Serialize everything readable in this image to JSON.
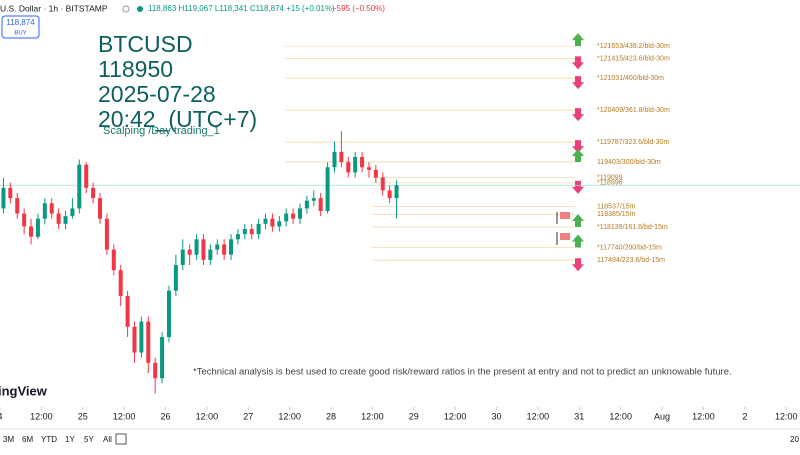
{
  "header": {
    "symbol": "U.S. Dollar · 1h · BITSTAMP",
    "ohlc": "118,863 H119,067 L118,341 C118,874 +15 (+0.01%)",
    "change": "−595 (−0.50%)",
    "price_box": "118,874",
    "price_box_action": "BUY"
  },
  "chart_data": {
    "type": "candlestick",
    "overlay_text": [
      "BTCUSD",
      "118950",
      "2025-07-28",
      "20:42_(UTC+7)"
    ],
    "subtitle": "Scalping /Day trading_1",
    "annotation": "*Technical analysis is best used to create good risk/reward ratios in the present at entry and not to predict an unknowable future.",
    "watermark": "ingView",
    "up_color": "#089981",
    "down_color": "#f23645",
    "x": [
      1,
      3,
      5,
      7,
      9,
      11,
      13,
      15,
      17,
      19,
      21,
      23,
      25,
      27,
      29,
      31,
      33,
      35,
      37,
      39,
      41,
      43,
      45,
      47,
      49,
      51,
      53,
      55,
      57,
      59,
      61,
      63,
      65,
      67,
      69,
      71,
      73,
      75,
      77,
      79,
      81,
      83,
      85,
      87,
      89,
      91,
      93,
      95,
      97,
      99,
      101,
      103,
      105,
      107,
      109,
      111,
      113,
      115
    ],
    "open": [
      118500,
      118900,
      118700,
      118400,
      118150,
      117950,
      118300,
      118600,
      118400,
      118200,
      118350,
      118500,
      119350,
      118900,
      118700,
      118300,
      117700,
      117300,
      116800,
      116200,
      115700,
      116300,
      115500,
      115200,
      116000,
      116900,
      117400,
      117700,
      117600,
      117900,
      117500,
      117700,
      117800,
      117600,
      117900,
      118000,
      118100,
      118000,
      118200,
      118300,
      118150,
      118250,
      118400,
      118300,
      118500,
      118650,
      118700,
      118450,
      119300,
      119600,
      119400,
      119200,
      119500,
      119300,
      119250,
      119100,
      118850,
      118700
    ],
    "high": [
      119100,
      119000,
      118800,
      118500,
      118300,
      118400,
      118700,
      118700,
      118500,
      118450,
      118700,
      119450,
      119400,
      119000,
      118800,
      118400,
      117800,
      117400,
      116900,
      116300,
      116400,
      116400,
      115600,
      116100,
      117000,
      117600,
      117900,
      117800,
      118000,
      118000,
      117800,
      117900,
      117900,
      118000,
      118100,
      118200,
      118200,
      118300,
      118400,
      118400,
      118350,
      118500,
      118500,
      118600,
      118750,
      118850,
      118800,
      119400,
      119800,
      120000,
      119500,
      119600,
      119600,
      119400,
      119350,
      119200,
      118950,
      119050
    ],
    "low": [
      118400,
      118600,
      118300,
      118000,
      117800,
      117900,
      118200,
      118300,
      118100,
      118100,
      118300,
      118400,
      118800,
      118600,
      118200,
      117600,
      117200,
      116600,
      116000,
      115500,
      115600,
      115300,
      114900,
      115100,
      115900,
      116800,
      117300,
      117400,
      117500,
      117400,
      117400,
      117600,
      117500,
      117500,
      117800,
      117900,
      117900,
      117900,
      118100,
      118050,
      118050,
      118150,
      118200,
      118200,
      118400,
      118550,
      118350,
      118400,
      119200,
      119300,
      119100,
      119100,
      119200,
      119100,
      119000,
      118750,
      118600,
      118300
    ],
    "close": [
      118900,
      118700,
      118400,
      118150,
      117950,
      118300,
      118600,
      118400,
      118200,
      118350,
      118500,
      119350,
      118900,
      118700,
      118300,
      117700,
      117300,
      116800,
      116200,
      115700,
      116300,
      115500,
      115200,
      116000,
      116900,
      117400,
      117700,
      117600,
      117900,
      117500,
      117700,
      117800,
      117600,
      117900,
      118000,
      118100,
      118000,
      118200,
      118300,
      118150,
      118250,
      118400,
      118300,
      118500,
      118650,
      118700,
      118450,
      119300,
      119600,
      119400,
      119200,
      119500,
      119300,
      119250,
      119100,
      118850,
      118700,
      118950
    ],
    "levels": [
      {
        "value": 121653,
        "label": "*121653/438.2/bld-30m",
        "arrow": "up"
      },
      {
        "value": 121415,
        "label": "*121415/423.6/bld-30m",
        "arrow": "down"
      },
      {
        "value": 121031,
        "label": "*121031/400/bld-30m",
        "arrow": "down"
      },
      {
        "value": 120409,
        "label": "*120409/361.8/bld-30m",
        "arrow": "down"
      },
      {
        "value": 119787,
        "label": "*119787/323.6/bld-30m",
        "arrow": "down"
      },
      {
        "value": 119403,
        "label": "119403/300/bld-30m",
        "arrow": "up"
      },
      {
        "value": 119099,
        "label": "*119099",
        "arrow": null
      },
      {
        "value": 118996,
        "label": "*118996",
        "arrow": "down"
      },
      {
        "value": 118537,
        "label": "118537/15m",
        "arrow": null
      },
      {
        "value": 118385,
        "label": "118385/15m",
        "arrow": null
      },
      {
        "value": 118139,
        "label": "*118139/161.8/bd-15m",
        "arrow": "up"
      },
      {
        "value": 117740,
        "label": "*117740/200/bd-15m",
        "arrow": "up"
      },
      {
        "value": 117494,
        "label": "117494/223.6/bd-15m",
        "arrow": "down"
      }
    ],
    "xlim": [
      0,
      232
    ],
    "ylim": [
      114680,
      122550
    ],
    "xticks": [
      {
        "value": 0,
        "label": "4"
      },
      {
        "value": 12,
        "label": "12:00"
      },
      {
        "value": 24,
        "label": "25"
      },
      {
        "value": 36,
        "label": "12:00"
      },
      {
        "value": 48,
        "label": "26"
      },
      {
        "value": 60,
        "label": "12:00"
      },
      {
        "value": 72,
        "label": "27"
      },
      {
        "value": 84,
        "label": "12:00"
      },
      {
        "value": 96,
        "label": "28"
      },
      {
        "value": 108,
        "label": "12:00"
      },
      {
        "value": 120,
        "label": "29"
      },
      {
        "value": 132,
        "label": "12:00"
      },
      {
        "value": 144,
        "label": "30"
      },
      {
        "value": 156,
        "label": "12:00"
      },
      {
        "value": 168,
        "label": "31"
      },
      {
        "value": 180,
        "label": "12:00"
      },
      {
        "value": 192,
        "label": "Aug"
      },
      {
        "value": 204,
        "label": "12:00"
      },
      {
        "value": 216,
        "label": "2"
      },
      {
        "value": 228,
        "label": "12:00"
      }
    ]
  },
  "toolbar": {
    "ranges": [
      "3M",
      "6M",
      "YTD",
      "1Y",
      "5Y",
      "All"
    ],
    "right_text": "20"
  }
}
